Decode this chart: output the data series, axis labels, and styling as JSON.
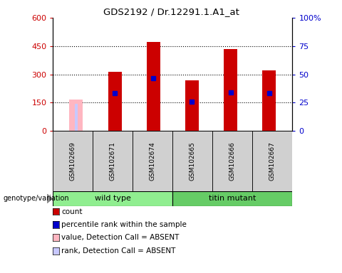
{
  "title": "GDS2192 / Dr.12291.1.A1_at",
  "samples": [
    "GSM102669",
    "GSM102671",
    "GSM102674",
    "GSM102665",
    "GSM102666",
    "GSM102667"
  ],
  "count_values": [
    165,
    315,
    470,
    270,
    435,
    320
  ],
  "rank_values": [
    145,
    200,
    280,
    155,
    205,
    200
  ],
  "absent_flags": [
    true,
    false,
    false,
    false,
    false,
    false
  ],
  "ylim_left": [
    0,
    600
  ],
  "ylim_right": [
    0,
    100
  ],
  "left_ticks": [
    0,
    150,
    300,
    450,
    600
  ],
  "right_ticks": [
    0,
    25,
    50,
    75,
    100
  ],
  "left_tick_labels": [
    "0",
    "150",
    "300",
    "450",
    "600"
  ],
  "right_tick_labels": [
    "0",
    "25",
    "50",
    "75",
    "100%"
  ],
  "left_color": "#cc0000",
  "right_color": "#0000cc",
  "bar_color": "#cc0000",
  "absent_value_color": "#ffb6c1",
  "absent_rank_color": "#c8c8ff",
  "rank_marker_color": "#0000cc",
  "bar_width": 0.35,
  "wild_type_color": "#90ee90",
  "titin_color": "#66cc66",
  "gray_box_color": "#d0d0d0",
  "legend_items": [
    "count",
    "percentile rank within the sample",
    "value, Detection Call = ABSENT",
    "rank, Detection Call = ABSENT"
  ],
  "legend_colors": [
    "#cc0000",
    "#0000cc",
    "#ffb6c1",
    "#c8c8ff"
  ]
}
